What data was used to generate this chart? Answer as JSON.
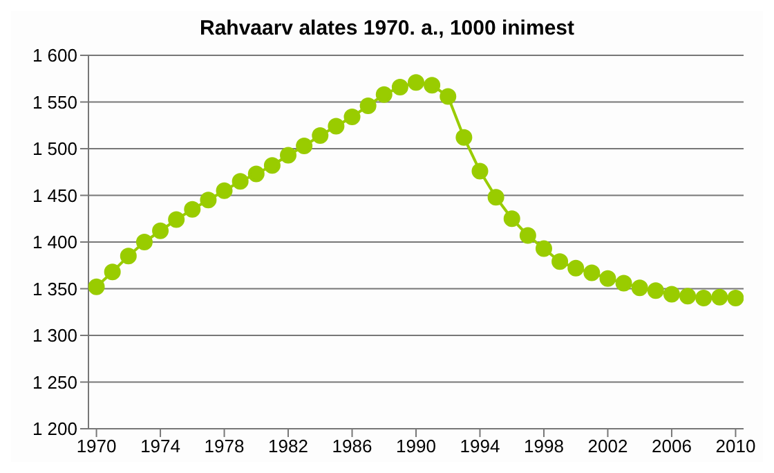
{
  "chart_data": {
    "type": "line",
    "title": "Rahvaarv alates 1970. a., 1000 inimest",
    "x": [
      1970,
      1971,
      1972,
      1973,
      1974,
      1975,
      1976,
      1977,
      1978,
      1979,
      1980,
      1981,
      1982,
      1983,
      1984,
      1985,
      1986,
      1987,
      1988,
      1989,
      1990,
      1991,
      1992,
      1993,
      1994,
      1995,
      1996,
      1997,
      1998,
      1999,
      2000,
      2001,
      2002,
      2003,
      2004,
      2005,
      2006,
      2007,
      2008,
      2009,
      2010
    ],
    "series": [
      {
        "color": "#99cc00",
        "values": [
          1352,
          1368,
          1385,
          1400,
          1412,
          1424,
          1435,
          1445,
          1455,
          1465,
          1473,
          1482,
          1493,
          1503,
          1514,
          1524,
          1534,
          1546,
          1558,
          1566,
          1571,
          1568,
          1556,
          1512,
          1476,
          1448,
          1425,
          1407,
          1393,
          1379,
          1372,
          1367,
          1361,
          1356,
          1351,
          1348,
          1344,
          1342,
          1340,
          1341,
          1340
        ]
      }
    ],
    "xlim": [
      1969.5,
      2010.5
    ],
    "xticks": [
      1970,
      1974,
      1978,
      1982,
      1986,
      1990,
      1994,
      1998,
      2002,
      2006,
      2010
    ],
    "ylim": [
      1200,
      1600
    ],
    "yticks": [
      {
        "value": 1200,
        "label": "1 200"
      },
      {
        "value": 1250,
        "label": "1 250"
      },
      {
        "value": 1300,
        "label": "1 300"
      },
      {
        "value": 1350,
        "label": "1 350"
      },
      {
        "value": 1400,
        "label": "1 400"
      },
      {
        "value": 1450,
        "label": "1 450"
      },
      {
        "value": 1500,
        "label": "1 500"
      },
      {
        "value": 1550,
        "label": "1 550"
      },
      {
        "value": 1600,
        "label": "1 600"
      }
    ],
    "grid": "y",
    "marker": "circle",
    "line_style": "solid",
    "legend": false
  }
}
